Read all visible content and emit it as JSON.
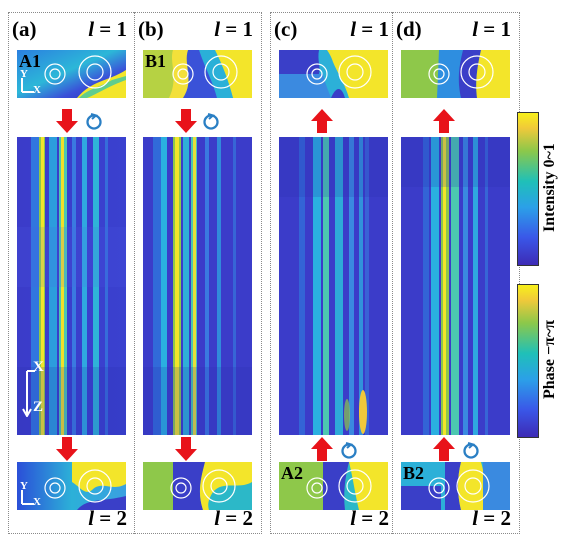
{
  "panels": [
    {
      "label": "(a)",
      "top_l": "= 1",
      "bottom_l": "= 2",
      "top_id": "A1",
      "bottom_id": "",
      "arrow_dir": "down"
    },
    {
      "label": "(b)",
      "top_l": "= 1",
      "bottom_l": "= 2",
      "top_id": "B1",
      "bottom_id": "",
      "arrow_dir": "down"
    },
    {
      "label": "(c)",
      "top_l": "= 1",
      "bottom_l": "= 2",
      "top_id": "",
      "bottom_id": "A2",
      "arrow_dir": "up"
    },
    {
      "label": "(d)",
      "top_l": "= 1",
      "bottom_l": "= 2",
      "top_id": "",
      "bottom_id": "B2",
      "arrow_dir": "up"
    }
  ],
  "l_symbol": "l",
  "axes_top": {
    "y": "Y",
    "x": "X"
  },
  "axes_main": {
    "x": "X",
    "z": "Z"
  },
  "colorbars": {
    "intensity_label": "Intensity  0~1",
    "phase_label": "Phase  −π~π"
  },
  "colors": {
    "arrow": "#e8131a",
    "vortex": "#2a7fc4",
    "low": "#3a2fc0",
    "high": "#f6ee1c"
  }
}
